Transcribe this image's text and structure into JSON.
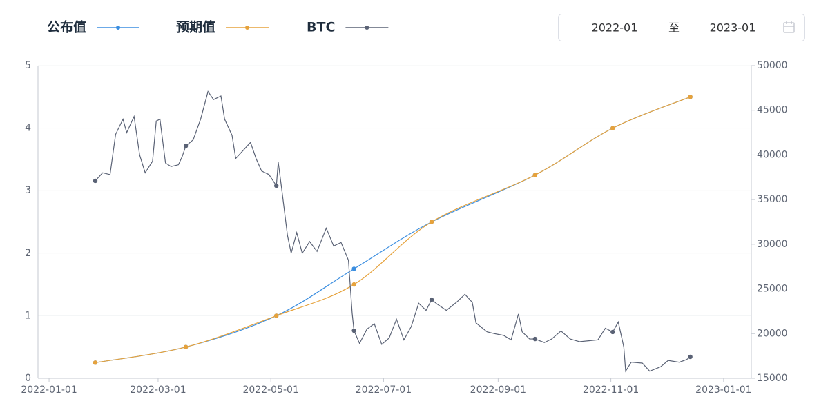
{
  "date_picker": {
    "start": "2022-01",
    "separator": "至",
    "end": "2023-01"
  },
  "chart_data": {
    "type": "line",
    "legend": "top-left",
    "grid": true,
    "xlim": [
      "2021-12-26",
      "2023-01-16"
    ],
    "xticks": [
      "2022-01-01",
      "2022-03-01",
      "2022-05-01",
      "2022-07-01",
      "2022-09-01",
      "2022-11-01",
      "2023-01-01"
    ],
    "ylim": [
      0,
      5
    ],
    "yticks": [
      0,
      1,
      2,
      3,
      4,
      5
    ],
    "y2lim": [
      15000,
      50000
    ],
    "y2ticks": [
      15000,
      20000,
      25000,
      30000,
      35000,
      40000,
      45000,
      50000
    ],
    "series": [
      {
        "name": "公布值",
        "color": "#3b8ee0",
        "smooth": true,
        "x": [
          "2022-01-26",
          "2022-03-16",
          "2022-05-04",
          "2022-06-15",
          "2022-07-27",
          "2022-09-21",
          "2022-11-02",
          "2022-12-14"
        ],
        "values": [
          0.25,
          0.5,
          1.0,
          1.75,
          2.5,
          3.25,
          4.0,
          4.5
        ]
      },
      {
        "name": "预期值",
        "color": "#e6a23c",
        "smooth": true,
        "x": [
          "2022-01-26",
          "2022-03-16",
          "2022-05-04",
          "2022-06-15",
          "2022-07-27",
          "2022-09-21",
          "2022-11-02",
          "2022-12-14"
        ],
        "values": [
          0.25,
          0.5,
          1.0,
          1.5,
          2.5,
          3.25,
          4.0,
          4.5
        ]
      },
      {
        "name": "BTC",
        "color": "#5a6275",
        "smooth": false,
        "axis": "y2",
        "x": [
          "2022-01-26",
          "2022-01-30",
          "2022-02-03",
          "2022-02-06",
          "2022-02-10",
          "2022-02-12",
          "2022-02-16",
          "2022-02-19",
          "2022-02-22",
          "2022-02-26",
          "2022-02-28",
          "2022-03-02",
          "2022-03-05",
          "2022-03-08",
          "2022-03-12",
          "2022-03-14",
          "2022-03-16",
          "2022-03-20",
          "2022-03-24",
          "2022-03-28",
          "2022-03-31",
          "2022-04-04",
          "2022-04-06",
          "2022-04-10",
          "2022-04-12",
          "2022-04-16",
          "2022-04-20",
          "2022-04-23",
          "2022-04-26",
          "2022-04-30",
          "2022-05-04",
          "2022-05-05",
          "2022-05-07",
          "2022-05-10",
          "2022-05-12",
          "2022-05-15",
          "2022-05-18",
          "2022-05-22",
          "2022-05-26",
          "2022-05-31",
          "2022-06-04",
          "2022-06-08",
          "2022-06-12",
          "2022-06-14",
          "2022-06-15",
          "2022-06-18",
          "2022-06-22",
          "2022-06-26",
          "2022-06-30",
          "2022-07-04",
          "2022-07-08",
          "2022-07-12",
          "2022-07-16",
          "2022-07-20",
          "2022-07-24",
          "2022-07-27",
          "2022-07-30",
          "2022-08-04",
          "2022-08-10",
          "2022-08-14",
          "2022-08-18",
          "2022-08-20",
          "2022-08-26",
          "2022-08-30",
          "2022-09-04",
          "2022-09-08",
          "2022-09-12",
          "2022-09-14",
          "2022-09-18",
          "2022-09-21",
          "2022-09-26",
          "2022-09-30",
          "2022-10-05",
          "2022-10-10",
          "2022-10-15",
          "2022-10-20",
          "2022-10-25",
          "2022-10-29",
          "2022-11-02",
          "2022-11-05",
          "2022-11-08",
          "2022-11-09",
          "2022-11-12",
          "2022-11-18",
          "2022-11-22",
          "2022-11-28",
          "2022-12-02",
          "2022-12-08",
          "2022-12-12",
          "2022-12-14"
        ],
        "values": [
          37100,
          38000,
          37800,
          42300,
          44000,
          42500,
          44300,
          40000,
          38000,
          39300,
          43800,
          44000,
          39100,
          38700,
          38900,
          39800,
          41000,
          41700,
          44000,
          47100,
          46200,
          46600,
          44000,
          42200,
          39600,
          40500,
          41400,
          39600,
          38200,
          37800,
          36550,
          39200,
          36000,
          31000,
          29000,
          31300,
          29000,
          30300,
          29200,
          31800,
          29800,
          30200,
          28200,
          22300,
          20330,
          18900,
          20500,
          21100,
          18800,
          19500,
          21600,
          19300,
          20800,
          23400,
          22600,
          23800,
          23300,
          22600,
          23600,
          24400,
          23500,
          21200,
          20200,
          20000,
          19800,
          19300,
          22200,
          20200,
          19400,
          19400,
          19000,
          19400,
          20300,
          19400,
          19100,
          19200,
          19300,
          20600,
          20180,
          21300,
          18500,
          15800,
          16800,
          16700,
          15800,
          16300,
          17000,
          16800,
          17100,
          17400
        ]
      }
    ]
  }
}
